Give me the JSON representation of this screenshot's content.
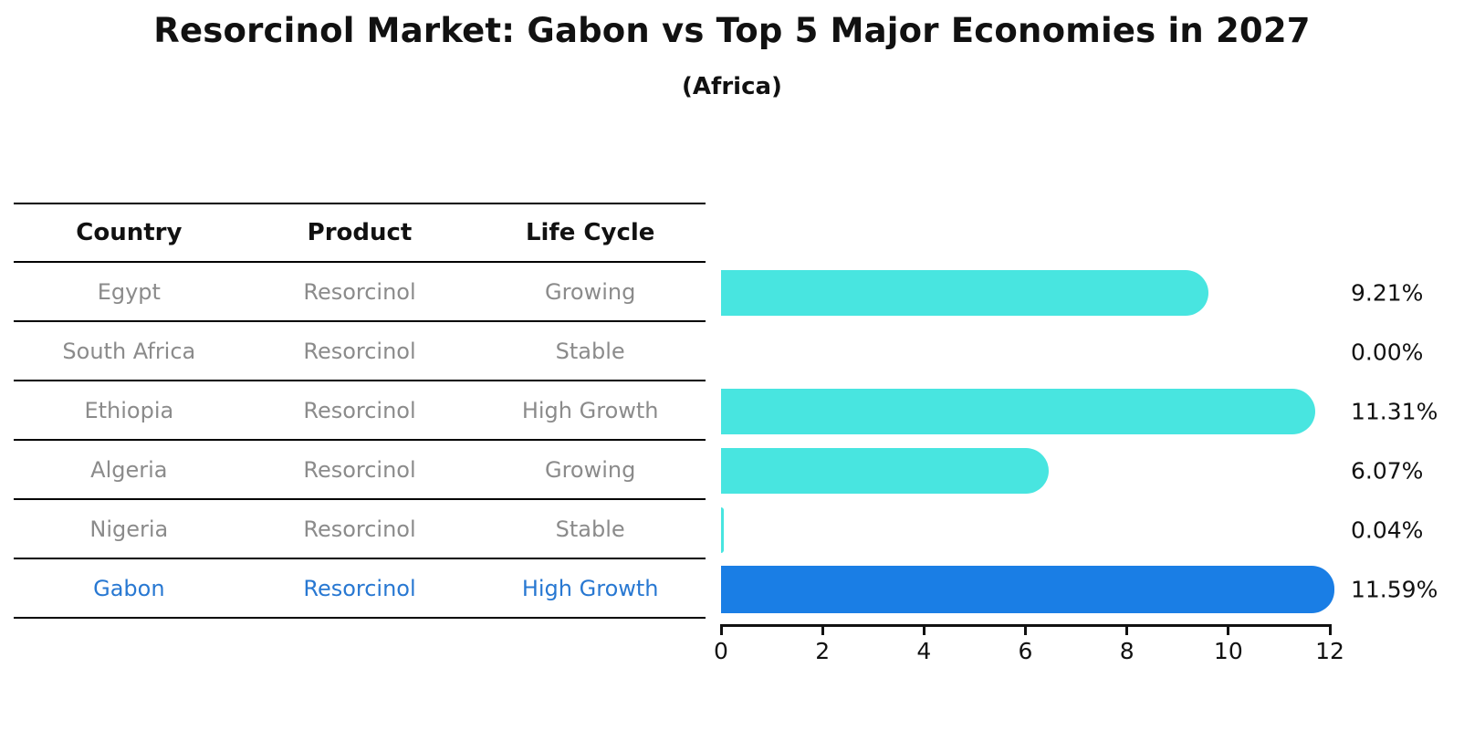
{
  "title": "Resorcinol Market: Gabon vs Top 5 Major Economies in 2027",
  "subtitle": "(Africa)",
  "table": {
    "headers": [
      "Country",
      "Product",
      "Life Cycle"
    ],
    "rows": [
      {
        "country": "Egypt",
        "product": "Resorcinol",
        "life_cycle": "Growing",
        "highlight": false
      },
      {
        "country": "South Africa",
        "product": "Resorcinol",
        "life_cycle": "Stable",
        "highlight": false
      },
      {
        "country": "Ethiopia",
        "product": "Resorcinol",
        "life_cycle": "High Growth",
        "highlight": false
      },
      {
        "country": "Algeria",
        "product": "Resorcinol",
        "life_cycle": "Growing",
        "highlight": false
      },
      {
        "country": "Nigeria",
        "product": "Resorcinol",
        "life_cycle": "Stable",
        "highlight": false
      },
      {
        "country": "Gabon",
        "product": "Resorcinol",
        "life_cycle": "High Growth",
        "highlight": true
      }
    ]
  },
  "chart_data": {
    "type": "bar",
    "orientation": "horizontal",
    "categories": [
      "Egypt",
      "South Africa",
      "Ethiopia",
      "Algeria",
      "Nigeria",
      "Gabon"
    ],
    "values": [
      9.21,
      0.0,
      11.31,
      6.07,
      0.04,
      11.59
    ],
    "value_labels": [
      "9.21%",
      "0.00%",
      "11.31%",
      "6.07%",
      "0.04%",
      "11.59%"
    ],
    "highlight_index": 5,
    "xlim": [
      0,
      12
    ],
    "xticks": [
      "0",
      "2",
      "4",
      "6",
      "8",
      "10",
      "12"
    ],
    "grid": false,
    "legend": null,
    "bar_color": "#48e5e0",
    "highlight_color": "#1a7ee5",
    "highlight_text_color": "#2878d2"
  }
}
